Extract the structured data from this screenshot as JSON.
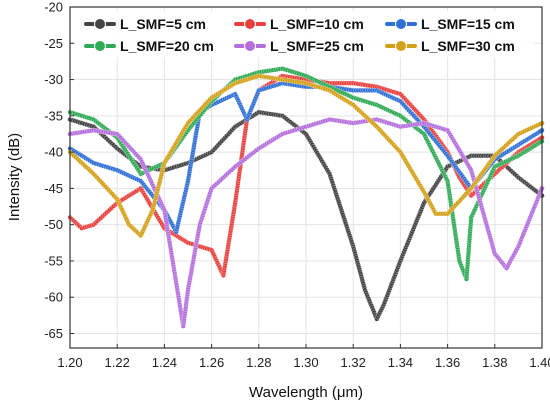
{
  "chart_data": {
    "type": "line",
    "title": "",
    "xlabel": "Wavelength (μm)",
    "ylabel": "Intensity (dB)",
    "xlim": [
      1.2,
      1.4
    ],
    "ylim": [
      -67,
      -20
    ],
    "xticks": [
      1.2,
      1.22,
      1.24,
      1.26,
      1.28,
      1.3,
      1.32,
      1.34,
      1.36,
      1.38,
      1.4
    ],
    "xtick_labels": [
      "1.20",
      "1.22",
      "1.24",
      "1.26",
      "1.28",
      "1.30",
      "1.32",
      "1.34",
      "1.36",
      "1.38",
      "1.40"
    ],
    "yticks": [
      -65,
      -60,
      -55,
      -50,
      -45,
      -40,
      -35,
      -30,
      -25,
      -20
    ],
    "ytick_labels": [
      "-65",
      "-60",
      "-55",
      "-50",
      "-45",
      "-40",
      "-35",
      "-30",
      "-25",
      "-20"
    ],
    "grid": true,
    "legend_position": "top",
    "series": [
      {
        "name": "L_SMF=5 cm",
        "color": "#444444",
        "x": [
          1.2,
          1.21,
          1.22,
          1.23,
          1.24,
          1.25,
          1.26,
          1.27,
          1.28,
          1.29,
          1.3,
          1.31,
          1.32,
          1.325,
          1.33,
          1.333,
          1.34,
          1.35,
          1.36,
          1.37,
          1.38,
          1.39,
          1.4
        ],
        "y": [
          -35.5,
          -36.5,
          -39.5,
          -42.0,
          -42.5,
          -41.5,
          -40.0,
          -36.5,
          -34.5,
          -35.0,
          -37.5,
          -43.0,
          -53.0,
          -59.0,
          -63.0,
          -61.0,
          -55.0,
          -47.0,
          -42.0,
          -40.5,
          -40.5,
          -43.5,
          -46.0
        ]
      },
      {
        "name": "L_SMF=10 cm",
        "color": "#e8413d",
        "x": [
          1.2,
          1.205,
          1.21,
          1.22,
          1.23,
          1.24,
          1.25,
          1.26,
          1.265,
          1.27,
          1.275,
          1.28,
          1.29,
          1.3,
          1.31,
          1.32,
          1.33,
          1.34,
          1.35,
          1.36,
          1.365,
          1.37,
          1.38,
          1.39,
          1.4
        ],
        "y": [
          -49.0,
          -50.5,
          -50.0,
          -47.0,
          -45.0,
          -50.5,
          -52.5,
          -53.5,
          -57.0,
          -47.0,
          -35.5,
          -31.5,
          -29.5,
          -30.0,
          -30.5,
          -30.5,
          -31.0,
          -32.0,
          -35.5,
          -40.0,
          -43.5,
          -46.0,
          -43.0,
          -40.0,
          -38.0
        ]
      },
      {
        "name": "L_SMF=15 cm",
        "color": "#2f6fd6",
        "x": [
          1.2,
          1.21,
          1.22,
          1.23,
          1.24,
          1.245,
          1.25,
          1.255,
          1.26,
          1.27,
          1.275,
          1.28,
          1.29,
          1.3,
          1.31,
          1.32,
          1.33,
          1.34,
          1.35,
          1.36,
          1.37,
          1.375,
          1.38,
          1.39,
          1.4
        ],
        "y": [
          -39.5,
          -41.5,
          -42.5,
          -44.0,
          -48.0,
          -51.0,
          -44.0,
          -34.5,
          -33.5,
          -32.0,
          -35.5,
          -31.5,
          -30.5,
          -31.0,
          -31.0,
          -31.5,
          -31.5,
          -33.0,
          -36.5,
          -40.5,
          -45.0,
          -43.0,
          -41.0,
          -39.0,
          -37.0
        ]
      },
      {
        "name": "L_SMF=20 cm",
        "color": "#2faa55",
        "x": [
          1.2,
          1.21,
          1.22,
          1.23,
          1.24,
          1.25,
          1.26,
          1.27,
          1.28,
          1.29,
          1.3,
          1.31,
          1.32,
          1.33,
          1.34,
          1.35,
          1.36,
          1.365,
          1.368,
          1.37,
          1.38,
          1.39,
          1.4
        ],
        "y": [
          -34.5,
          -35.5,
          -38.0,
          -43.0,
          -41.5,
          -37.0,
          -33.0,
          -30.0,
          -29.0,
          -28.5,
          -29.5,
          -31.0,
          -32.5,
          -33.5,
          -35.0,
          -37.5,
          -44.0,
          -55.0,
          -57.5,
          -49.0,
          -42.0,
          -40.5,
          -38.5
        ]
      },
      {
        "name": "L_SMF=25 cm",
        "color": "#b46fdd",
        "x": [
          1.2,
          1.21,
          1.22,
          1.23,
          1.24,
          1.245,
          1.248,
          1.25,
          1.255,
          1.26,
          1.27,
          1.28,
          1.29,
          1.3,
          1.31,
          1.32,
          1.33,
          1.34,
          1.35,
          1.36,
          1.37,
          1.38,
          1.385,
          1.39,
          1.4
        ],
        "y": [
          -37.5,
          -37.0,
          -37.5,
          -41.0,
          -48.0,
          -58.0,
          -64.0,
          -59.0,
          -50.0,
          -45.0,
          -42.0,
          -39.5,
          -37.5,
          -36.5,
          -35.5,
          -36.0,
          -35.5,
          -36.5,
          -36.0,
          -37.0,
          -42.5,
          -54.0,
          -56.0,
          -53.0,
          -45.0
        ]
      },
      {
        "name": "L_SMF=30 cm",
        "color": "#d4a017",
        "x": [
          1.2,
          1.21,
          1.22,
          1.225,
          1.23,
          1.235,
          1.24,
          1.25,
          1.26,
          1.27,
          1.28,
          1.29,
          1.3,
          1.31,
          1.32,
          1.33,
          1.34,
          1.35,
          1.355,
          1.36,
          1.37,
          1.38,
          1.39,
          1.4
        ],
        "y": [
          -40.0,
          -43.0,
          -46.5,
          -50.0,
          -51.5,
          -48.0,
          -41.5,
          -36.0,
          -32.5,
          -30.5,
          -29.5,
          -30.0,
          -30.5,
          -31.5,
          -33.5,
          -36.5,
          -40.0,
          -45.5,
          -48.5,
          -48.5,
          -45.0,
          -40.5,
          -37.5,
          -36.0
        ]
      }
    ]
  }
}
